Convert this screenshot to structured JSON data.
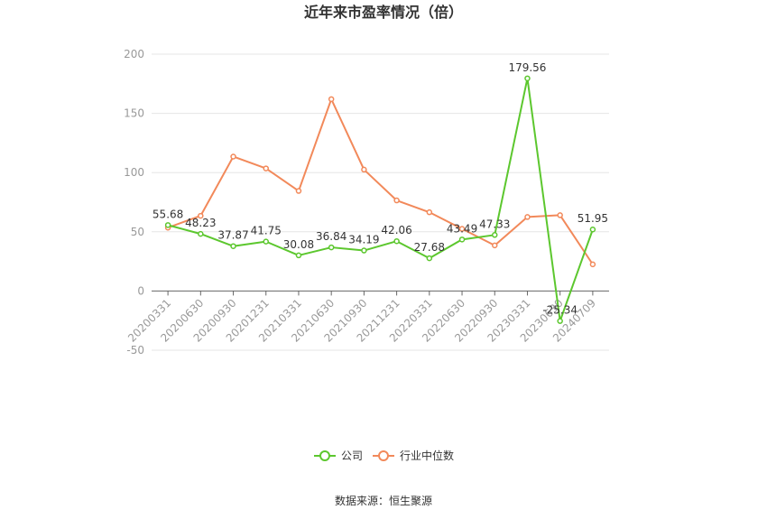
{
  "chart_data": {
    "type": "line",
    "title": "近年来市盈率情况（倍）",
    "categories": [
      "20200331",
      "20200630",
      "20200930",
      "20201231",
      "20210331",
      "20210630",
      "20210930",
      "20211231",
      "20220331",
      "20220630",
      "20220930",
      "20230331",
      "20230630",
      "20240709"
    ],
    "ylim": [
      -50,
      200
    ],
    "yticks": [
      -50,
      0,
      50,
      100,
      150,
      200
    ],
    "grid": true,
    "legend_position": "bottom",
    "series": [
      {
        "name": "公司",
        "color": "#5cc72e",
        "values": [
          55.68,
          48.23,
          37.87,
          41.75,
          30.08,
          36.84,
          34.19,
          42.06,
          27.68,
          43.49,
          47.33,
          179.56,
          -25.34,
          51.95
        ],
        "labels": [
          "55.68",
          "48.23",
          "37.87",
          "41.75",
          "30.08",
          "36.84",
          "34.19",
          "42.06",
          "27.68",
          "43.49",
          "47.33",
          "179.56",
          "-25.34",
          "51.95"
        ]
      },
      {
        "name": "行业中位数",
        "color": "#f2895a",
        "values": [
          53.5,
          63.5,
          113.5,
          103.5,
          84.5,
          162.0,
          102.5,
          76.5,
          66.5,
          52.5,
          38.5,
          62.5,
          64.0,
          22.5
        ]
      }
    ],
    "source": "数据来源：恒生聚源"
  }
}
